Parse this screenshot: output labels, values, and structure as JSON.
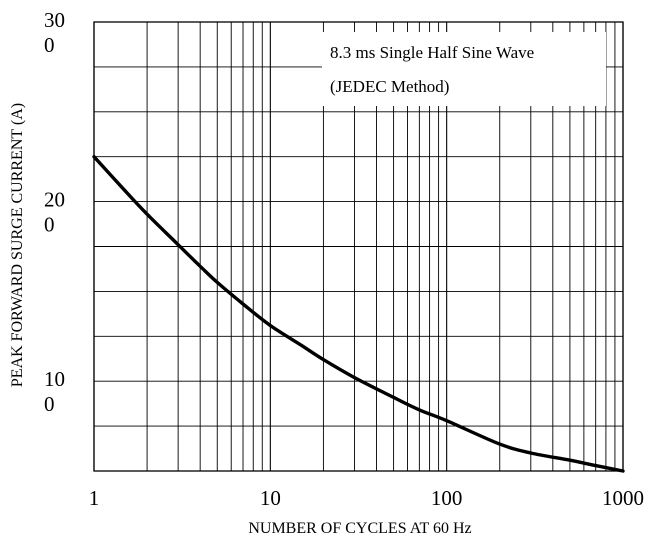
{
  "chart_data": {
    "type": "line",
    "title": "",
    "xlabel": "NUMBER OF CYCLES AT 60 Hz",
    "ylabel": "PEAK FORWARD SURGE CURRENT (A)",
    "x_scale": "log",
    "xlim": [
      1,
      1000
    ],
    "ylim": [
      50,
      300
    ],
    "grid": true,
    "x_ticks": [
      {
        "value": 1,
        "label": "1"
      },
      {
        "value": 10,
        "label": "10"
      },
      {
        "value": 100,
        "label": "100"
      },
      {
        "value": 1000,
        "label": "1000"
      }
    ],
    "y_ticks": [
      {
        "value": 100,
        "lines": [
          "10",
          "0"
        ]
      },
      {
        "value": 200,
        "lines": [
          "20",
          "0"
        ]
      },
      {
        "value": 300,
        "lines": [
          "30",
          "0"
        ]
      }
    ],
    "annotation": [
      "8.3 ms Single Half Sine Wave",
      "(JEDEC Method)"
    ],
    "series": [
      {
        "x": [
          1,
          1.5,
          2,
          3,
          4,
          5,
          7,
          10,
          15,
          20,
          30,
          50,
          70,
          100,
          200,
          300,
          500,
          700,
          1000
        ],
        "y": [
          225,
          206,
          193,
          176,
          164,
          155,
          143,
          131,
          120,
          112,
          102,
          91,
          84,
          78,
          65,
          60,
          56,
          53,
          50
        ]
      }
    ]
  }
}
